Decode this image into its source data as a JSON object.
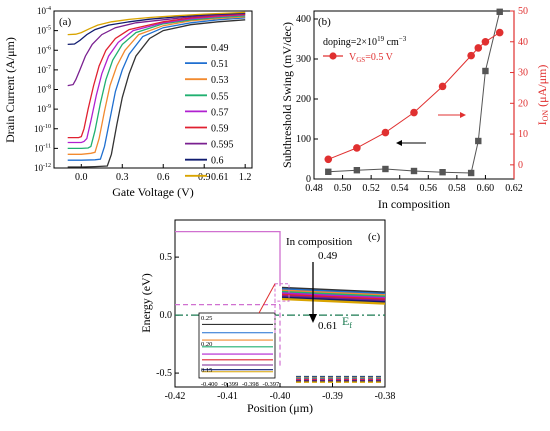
{
  "chart_data": [
    {
      "panel": "(a)",
      "type": "line",
      "xlabel": "Gate Voltage (V)",
      "ylabel": "Drain Current (A/μm)",
      "yscale": "log",
      "xlim": [
        -0.2,
        1.25
      ],
      "ylim": [
        1e-12,
        0.0001
      ],
      "x_ticks": [
        "0.0",
        "0.3",
        "0.6",
        "0.9",
        "1.2"
      ],
      "y_ticks": [
        "10",
        "10",
        "10",
        "10",
        "10",
        "10",
        "10",
        "10",
        "10"
      ],
      "y_tick_exponents": [
        "-12",
        "-11",
        "-10",
        "-9",
        "-8",
        "-7",
        "-6",
        "-5",
        "-4"
      ],
      "legend_position": "right",
      "series": [
        {
          "name": "0.49",
          "color": "#333333",
          "points": [
            [
              -0.1,
              -11.95
            ],
            [
              0.0,
              -11.95
            ],
            [
              0.1,
              -11.93
            ],
            [
              0.19,
              -11.9
            ],
            [
              0.22,
              -11.3
            ],
            [
              0.26,
              -9.8
            ],
            [
              0.3,
              -8.4
            ],
            [
              0.35,
              -7.2
            ],
            [
              0.4,
              -6.3
            ],
            [
              0.5,
              -5.4
            ],
            [
              0.6,
              -5.0
            ],
            [
              0.8,
              -4.7
            ],
            [
              1.0,
              -4.55
            ],
            [
              1.2,
              -4.45
            ]
          ]
        },
        {
          "name": "0.51",
          "color": "#1f6fd0",
          "points": [
            [
              -0.1,
              -11.6
            ],
            [
              0.0,
              -11.6
            ],
            [
              0.1,
              -11.58
            ],
            [
              0.14,
              -11.55
            ],
            [
              0.17,
              -10.9
            ],
            [
              0.21,
              -9.5
            ],
            [
              0.25,
              -8.1
            ],
            [
              0.3,
              -7.0
            ],
            [
              0.35,
              -6.2
            ],
            [
              0.45,
              -5.3
            ],
            [
              0.6,
              -4.85
            ],
            [
              0.8,
              -4.6
            ],
            [
              1.0,
              -4.45
            ],
            [
              1.2,
              -4.35
            ]
          ]
        },
        {
          "name": "0.53",
          "color": "#f28a2f",
          "points": [
            [
              -0.1,
              -11.3
            ],
            [
              0.0,
              -11.3
            ],
            [
              0.07,
              -11.25
            ],
            [
              0.1,
              -11.2
            ],
            [
              0.13,
              -10.5
            ],
            [
              0.17,
              -9.1
            ],
            [
              0.21,
              -7.8
            ],
            [
              0.26,
              -6.8
            ],
            [
              0.32,
              -6.0
            ],
            [
              0.42,
              -5.2
            ],
            [
              0.6,
              -4.75
            ],
            [
              0.8,
              -4.5
            ],
            [
              1.0,
              -4.38
            ],
            [
              1.2,
              -4.3
            ]
          ]
        },
        {
          "name": "0.55",
          "color": "#20b070",
          "points": [
            [
              -0.1,
              -11.0
            ],
            [
              0.0,
              -11.0
            ],
            [
              0.05,
              -10.98
            ],
            [
              0.07,
              -10.9
            ],
            [
              0.1,
              -10.1
            ],
            [
              0.14,
              -8.7
            ],
            [
              0.18,
              -7.5
            ],
            [
              0.23,
              -6.5
            ],
            [
              0.3,
              -5.7
            ],
            [
              0.4,
              -5.1
            ],
            [
              0.6,
              -4.65
            ],
            [
              0.8,
              -4.45
            ],
            [
              1.0,
              -4.33
            ],
            [
              1.2,
              -4.25
            ]
          ]
        },
        {
          "name": "0.57",
          "color": "#b020d0",
          "points": [
            [
              -0.1,
              -10.7
            ],
            [
              0.0,
              -10.7
            ],
            [
              0.02,
              -10.65
            ],
            [
              0.04,
              -10.5
            ],
            [
              0.07,
              -9.6
            ],
            [
              0.11,
              -8.3
            ],
            [
              0.15,
              -7.2
            ],
            [
              0.2,
              -6.3
            ],
            [
              0.27,
              -5.6
            ],
            [
              0.38,
              -5.0
            ],
            [
              0.6,
              -4.6
            ],
            [
              0.8,
              -4.4
            ],
            [
              1.0,
              -4.28
            ],
            [
              1.2,
              -4.2
            ]
          ]
        },
        {
          "name": "0.59",
          "color": "#e02030",
          "points": [
            [
              -0.1,
              -10.45
            ],
            [
              -0.02,
              -10.45
            ],
            [
              0.0,
              -10.4
            ],
            [
              0.02,
              -10.0
            ],
            [
              0.05,
              -9.0
            ],
            [
              0.09,
              -7.8
            ],
            [
              0.13,
              -6.8
            ],
            [
              0.18,
              -6.0
            ],
            [
              0.25,
              -5.4
            ],
            [
              0.35,
              -4.95
            ],
            [
              0.6,
              -4.55
            ],
            [
              0.8,
              -4.35
            ],
            [
              1.0,
              -4.24
            ],
            [
              1.2,
              -4.17
            ]
          ]
        },
        {
          "name": "0.595",
          "color": "#7a2090",
          "points": [
            [
              -0.1,
              -7.8
            ],
            [
              -0.06,
              -7.75
            ],
            [
              -0.04,
              -7.5
            ],
            [
              -0.01,
              -7.0
            ],
            [
              0.03,
              -6.3
            ],
            [
              0.08,
              -5.7
            ],
            [
              0.15,
              -5.2
            ],
            [
              0.25,
              -4.85
            ],
            [
              0.4,
              -4.6
            ],
            [
              0.6,
              -4.45
            ],
            [
              0.8,
              -4.3
            ],
            [
              1.0,
              -4.2
            ],
            [
              1.2,
              -4.13
            ]
          ]
        },
        {
          "name": "0.6",
          "color": "#101c70",
          "points": [
            [
              -0.1,
              -5.7
            ],
            [
              -0.05,
              -5.68
            ],
            [
              -0.01,
              -5.5
            ],
            [
              0.04,
              -5.2
            ],
            [
              0.1,
              -4.95
            ],
            [
              0.2,
              -4.72
            ],
            [
              0.35,
              -4.55
            ],
            [
              0.5,
              -4.42
            ],
            [
              0.7,
              -4.3
            ],
            [
              0.9,
              -4.2
            ],
            [
              1.2,
              -4.1
            ]
          ]
        },
        {
          "name": "0.61",
          "color": "#d9a400",
          "points": [
            [
              -0.1,
              -5.2
            ],
            [
              -0.04,
              -5.18
            ],
            [
              0.0,
              -5.1
            ],
            [
              0.06,
              -4.9
            ],
            [
              0.12,
              -4.72
            ],
            [
              0.22,
              -4.55
            ],
            [
              0.35,
              -4.43
            ],
            [
              0.5,
              -4.33
            ],
            [
              0.7,
              -4.24
            ],
            [
              0.9,
              -4.16
            ],
            [
              1.2,
              -4.07
            ]
          ]
        }
      ]
    },
    {
      "panel": "(b)",
      "type": "line",
      "xlabel": "In composition",
      "ylabel": "Subthreshold Swing (mV/dec)",
      "y2label": "I",
      "y2label_sub": "ON",
      "y2label_unit": " (μA/μm)",
      "xlim": [
        0.48,
        0.62
      ],
      "ylim": [
        0,
        420
      ],
      "y2lim": [
        -4.6,
        50
      ],
      "x_ticks": [
        "0.48",
        "0.50",
        "0.52",
        "0.54",
        "0.56",
        "0.58",
        "0.60",
        "0.62"
      ],
      "y_ticks": [
        "0",
        "100",
        "200",
        "300",
        "400"
      ],
      "y2_ticks": [
        "0",
        "10",
        "20",
        "30",
        "40",
        "50"
      ],
      "annotation_doping_text": "doping=2×10",
      "annotation_doping_exp": "19",
      "annotation_doping_unit": " cm",
      "annotation_doping_unit_exp": "−3",
      "legend_label": "V",
      "legend_label_sub": "GS",
      "legend_label_tail": "=0.5 V",
      "legend_position": "top-left",
      "series": [
        {
          "name": "Subthreshold Swing",
          "axis": "left",
          "color": "#555555",
          "marker": "square",
          "x": [
            0.49,
            0.51,
            0.53,
            0.55,
            0.57,
            0.59,
            0.595,
            0.6,
            0.61
          ],
          "values": [
            18,
            22,
            25,
            20,
            17,
            15,
            95,
            270,
            418
          ]
        },
        {
          "name": "I_ON",
          "axis": "right",
          "color": "#e03030",
          "marker": "circle",
          "x": [
            0.49,
            0.51,
            0.53,
            0.55,
            0.57,
            0.59,
            0.595,
            0.6,
            0.61
          ],
          "values": [
            1.8,
            5.5,
            10.5,
            17.0,
            25.5,
            35.5,
            38.0,
            40.0,
            43.0
          ]
        }
      ]
    },
    {
      "panel": "(c)",
      "type": "line",
      "xlabel": "Position (μm)",
      "ylabel": "Energy (eV)",
      "xlim": [
        -0.42,
        -0.38
      ],
      "ylim": [
        -0.62,
        0.82
      ],
      "x_ticks": [
        "-0.42",
        "-0.41",
        "-0.40",
        "-0.39",
        "-0.38"
      ],
      "y_ticks": [
        "-0.5",
        "0.0",
        "0.5"
      ],
      "annotation_title": "In composition",
      "annotation_top": "0.49",
      "annotation_bottom": "0.61",
      "fermi_label": "E",
      "fermi_sub": "f",
      "fermi_level": 0.0,
      "source_band_top": 0.72,
      "source_band_dashed": 0.09,
      "inset_x_ticks": [
        "-0.400",
        "-0.399",
        "-0.398",
        "-0.397"
      ],
      "inset_y_ticks": [
        "0.25",
        "0.20",
        "0.15"
      ],
      "inset_levels": [
        0.238,
        0.222,
        0.208,
        0.195,
        0.181,
        0.17,
        0.16,
        0.151,
        0.147
      ],
      "colors": [
        "#333333",
        "#1f6fd0",
        "#f28a2f",
        "#20b070",
        "#b020d0",
        "#e02030",
        "#7a2090",
        "#101c70",
        "#d9a400"
      ]
    }
  ]
}
